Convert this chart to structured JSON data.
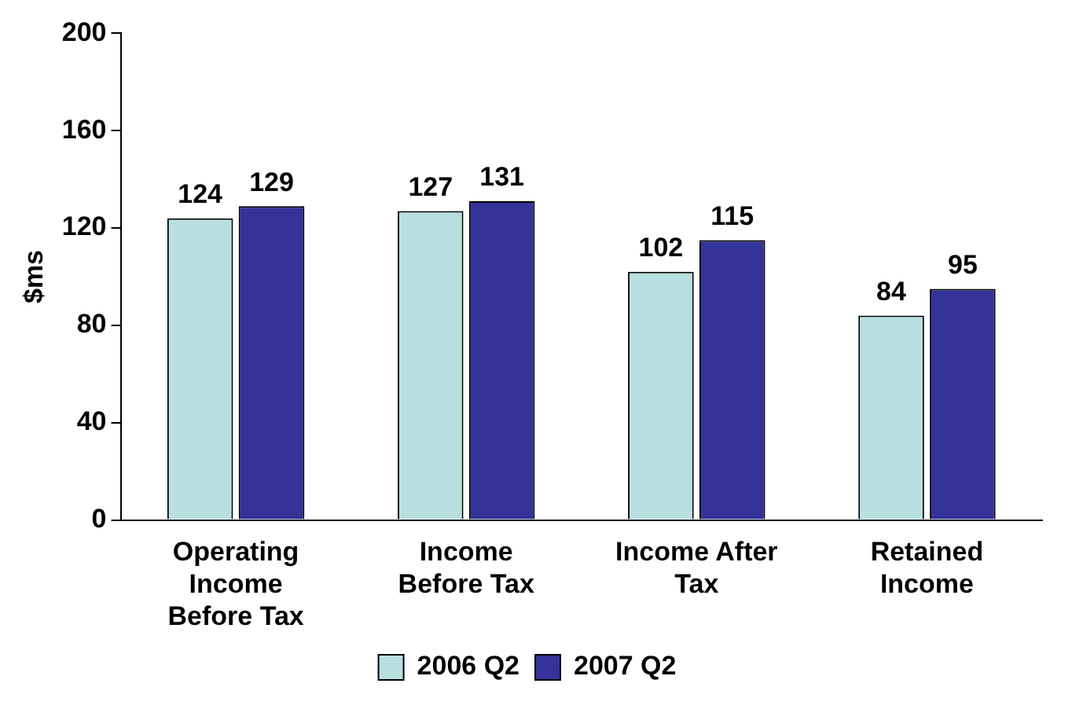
{
  "chart_data": {
    "type": "bar",
    "ylabel": "$ms",
    "categories": [
      "Operating Income Before Tax",
      "Income Before Tax",
      "Income After Tax",
      "Retained Income"
    ],
    "series": [
      {
        "name": "2006 Q2",
        "color": "#b9e0e0",
        "values": [
          124,
          127,
          102,
          84
        ]
      },
      {
        "name": "2007 Q2",
        "color": "#333399",
        "values": [
          129,
          131,
          115,
          95
        ]
      }
    ],
    "ylim": [
      0,
      200
    ],
    "yticks": [
      0,
      40,
      80,
      120,
      160,
      200
    ],
    "grid": false,
    "legend": "bottom",
    "data_labels": true
  }
}
